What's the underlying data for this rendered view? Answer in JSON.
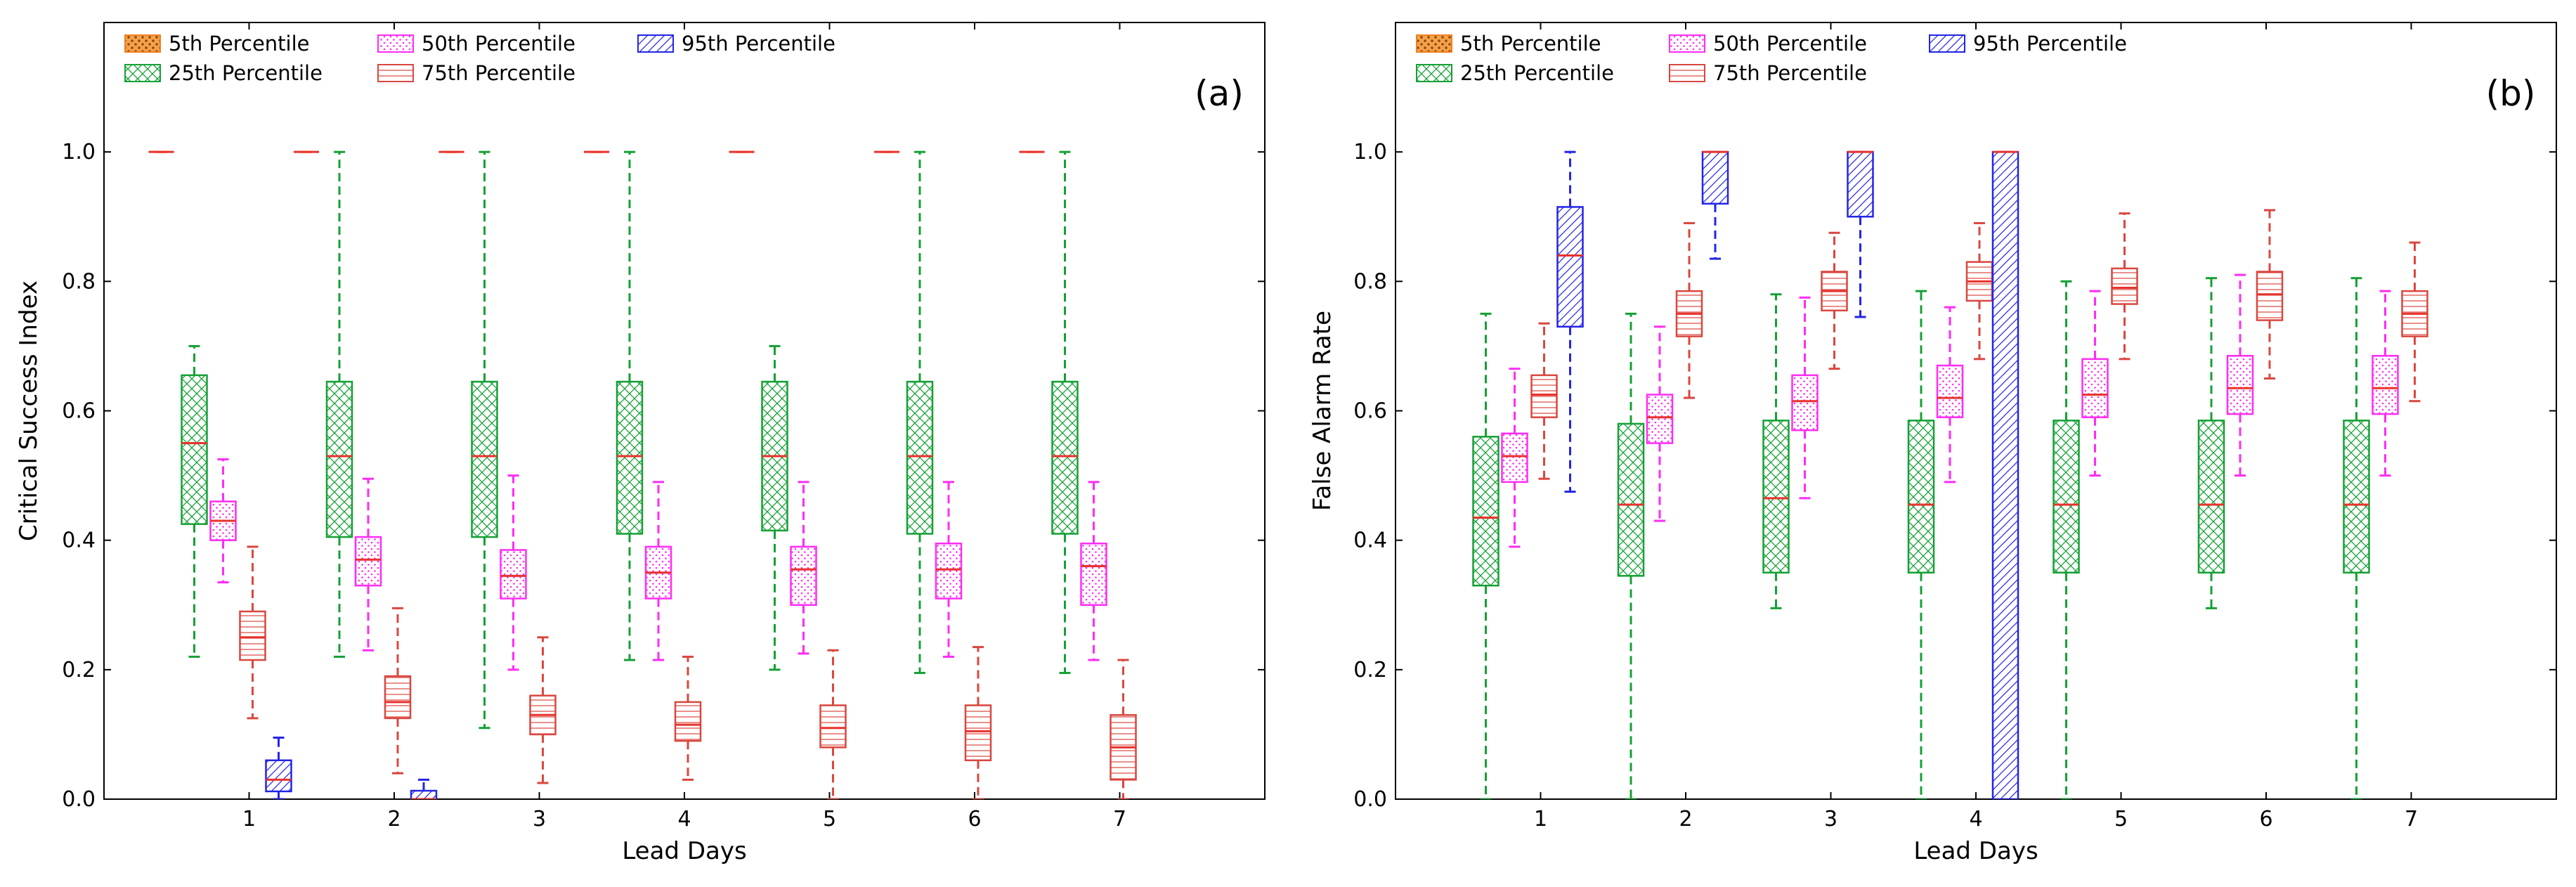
{
  "colors": {
    "p5": "#f07f1d",
    "p25": "#15a035",
    "p50": "#ff2cf4",
    "p75": "#d9473f",
    "p95": "#2424e6",
    "median": "#e8322c"
  },
  "legend": {
    "p5": "5th Percentile",
    "p25": "25th Percentile",
    "p50": "50th Percentile",
    "p75": "75th Percentile",
    "p95": "95th Percentile"
  },
  "chart_data": [
    {
      "type": "boxplot",
      "panel_label": "(a)",
      "xlabel": "Lead Days",
      "ylabel": "Critical Success Index",
      "ylim": [
        0,
        1.2
      ],
      "yticks": [
        "0.0",
        "0.2",
        "0.4",
        "0.6",
        "0.8",
        "1.0"
      ],
      "categories": [
        "1",
        "2",
        "3",
        "4",
        "5",
        "6",
        "7"
      ],
      "series": [
        {
          "key": "p5",
          "name": "5th Percentile",
          "boxes": [
            {
              "min": 1.0,
              "q1": 1.0,
              "med": 1.0,
              "q3": 1.0,
              "max": 1.0
            },
            {
              "min": 1.0,
              "q1": 1.0,
              "med": 1.0,
              "q3": 1.0,
              "max": 1.0
            },
            {
              "min": 1.0,
              "q1": 1.0,
              "med": 1.0,
              "q3": 1.0,
              "max": 1.0
            },
            {
              "min": 1.0,
              "q1": 1.0,
              "med": 1.0,
              "q3": 1.0,
              "max": 1.0
            },
            {
              "min": 1.0,
              "q1": 1.0,
              "med": 1.0,
              "q3": 1.0,
              "max": 1.0
            },
            {
              "min": 1.0,
              "q1": 1.0,
              "med": 1.0,
              "q3": 1.0,
              "max": 1.0
            },
            {
              "min": 1.0,
              "q1": 1.0,
              "med": 1.0,
              "q3": 1.0,
              "max": 1.0
            }
          ]
        },
        {
          "key": "p25",
          "name": "25th Percentile",
          "boxes": [
            {
              "min": 0.22,
              "q1": 0.425,
              "med": 0.55,
              "q3": 0.655,
              "max": 0.7
            },
            {
              "min": 0.22,
              "q1": 0.405,
              "med": 0.53,
              "q3": 0.645,
              "max": 1.0
            },
            {
              "min": 0.11,
              "q1": 0.405,
              "med": 0.53,
              "q3": 0.645,
              "max": 1.0
            },
            {
              "min": 0.215,
              "q1": 0.41,
              "med": 0.53,
              "q3": 0.645,
              "max": 1.0
            },
            {
              "min": 0.2,
              "q1": 0.415,
              "med": 0.53,
              "q3": 0.645,
              "max": 0.7
            },
            {
              "min": 0.195,
              "q1": 0.41,
              "med": 0.53,
              "q3": 0.645,
              "max": 1.0
            },
            {
              "min": 0.195,
              "q1": 0.41,
              "med": 0.53,
              "q3": 0.645,
              "max": 1.0
            }
          ]
        },
        {
          "key": "p50",
          "name": "50th Percentile",
          "boxes": [
            {
              "min": 0.335,
              "q1": 0.4,
              "med": 0.43,
              "q3": 0.46,
              "max": 0.525
            },
            {
              "min": 0.23,
              "q1": 0.33,
              "med": 0.37,
              "q3": 0.405,
              "max": 0.495
            },
            {
              "min": 0.2,
              "q1": 0.31,
              "med": 0.345,
              "q3": 0.385,
              "max": 0.5
            },
            {
              "min": 0.215,
              "q1": 0.31,
              "med": 0.35,
              "q3": 0.39,
              "max": 0.49
            },
            {
              "min": 0.225,
              "q1": 0.3,
              "med": 0.355,
              "q3": 0.39,
              "max": 0.49
            },
            {
              "min": 0.22,
              "q1": 0.31,
              "med": 0.355,
              "q3": 0.395,
              "max": 0.49
            },
            {
              "min": 0.215,
              "q1": 0.3,
              "med": 0.36,
              "q3": 0.395,
              "max": 0.49
            }
          ]
        },
        {
          "key": "p75",
          "name": "75th Percentile",
          "boxes": [
            {
              "min": 0.125,
              "q1": 0.215,
              "med": 0.25,
              "q3": 0.29,
              "max": 0.39
            },
            {
              "min": 0.04,
              "q1": 0.125,
              "med": 0.15,
              "q3": 0.19,
              "max": 0.295
            },
            {
              "min": 0.025,
              "q1": 0.1,
              "med": 0.13,
              "q3": 0.16,
              "max": 0.25
            },
            {
              "min": 0.03,
              "q1": 0.09,
              "med": 0.115,
              "q3": 0.15,
              "max": 0.22
            },
            {
              "min": 0.0,
              "q1": 0.08,
              "med": 0.11,
              "q3": 0.145,
              "max": 0.23
            },
            {
              "min": 0.0,
              "q1": 0.06,
              "med": 0.105,
              "q3": 0.145,
              "max": 0.235
            },
            {
              "min": 0.0,
              "q1": 0.03,
              "med": 0.08,
              "q3": 0.13,
              "max": 0.215
            }
          ]
        },
        {
          "key": "p95",
          "name": "95th Percentile",
          "boxes": [
            {
              "min": 0.0,
              "q1": 0.012,
              "med": 0.03,
              "q3": 0.06,
              "max": 0.095
            },
            {
              "min": 0.0,
              "q1": 0.0,
              "med": 0.0,
              "q3": 0.013,
              "max": 0.03
            },
            null,
            null,
            null,
            null,
            null
          ]
        }
      ]
    },
    {
      "type": "boxplot",
      "panel_label": "(b)",
      "xlabel": "Lead Days",
      "ylabel": "False Alarm Rate",
      "ylim": [
        0,
        1.2
      ],
      "yticks": [
        "0.0",
        "0.2",
        "0.4",
        "0.6",
        "0.8",
        "1.0"
      ],
      "categories": [
        "1",
        "2",
        "3",
        "4",
        "5",
        "6",
        "7"
      ],
      "series": [
        {
          "key": "p5",
          "name": "5th Percentile",
          "boxes": [
            null,
            null,
            null,
            null,
            null,
            null,
            null
          ]
        },
        {
          "key": "p25",
          "name": "25th Percentile",
          "boxes": [
            {
              "min": 0.0,
              "q1": 0.33,
              "med": 0.435,
              "q3": 0.56,
              "max": 0.75
            },
            {
              "min": 0.0,
              "q1": 0.345,
              "med": 0.455,
              "q3": 0.58,
              "max": 0.75
            },
            {
              "min": 0.295,
              "q1": 0.35,
              "med": 0.465,
              "q3": 0.585,
              "max": 0.78
            },
            {
              "min": 0.0,
              "q1": 0.35,
              "med": 0.455,
              "q3": 0.585,
              "max": 0.785
            },
            {
              "min": 0.0,
              "q1": 0.35,
              "med": 0.455,
              "q3": 0.585,
              "max": 0.8
            },
            {
              "min": 0.295,
              "q1": 0.35,
              "med": 0.455,
              "q3": 0.585,
              "max": 0.805
            },
            {
              "min": 0.0,
              "q1": 0.35,
              "med": 0.455,
              "q3": 0.585,
              "max": 0.805
            }
          ]
        },
        {
          "key": "p50",
          "name": "50th Percentile",
          "boxes": [
            {
              "min": 0.39,
              "q1": 0.49,
              "med": 0.53,
              "q3": 0.565,
              "max": 0.665
            },
            {
              "min": 0.43,
              "q1": 0.55,
              "med": 0.59,
              "q3": 0.625,
              "max": 0.73
            },
            {
              "min": 0.465,
              "q1": 0.57,
              "med": 0.615,
              "q3": 0.655,
              "max": 0.775
            },
            {
              "min": 0.49,
              "q1": 0.59,
              "med": 0.62,
              "q3": 0.67,
              "max": 0.76
            },
            {
              "min": 0.5,
              "q1": 0.59,
              "med": 0.625,
              "q3": 0.68,
              "max": 0.785
            },
            {
              "min": 0.5,
              "q1": 0.595,
              "med": 0.635,
              "q3": 0.685,
              "max": 0.81
            },
            {
              "min": 0.5,
              "q1": 0.595,
              "med": 0.635,
              "q3": 0.685,
              "max": 0.785
            }
          ]
        },
        {
          "key": "p75",
          "name": "75th Percentile",
          "boxes": [
            {
              "min": 0.495,
              "q1": 0.59,
              "med": 0.625,
              "q3": 0.655,
              "max": 0.735
            },
            {
              "min": 0.62,
              "q1": 0.715,
              "med": 0.75,
              "q3": 0.785,
              "max": 0.89
            },
            {
              "min": 0.665,
              "q1": 0.755,
              "med": 0.785,
              "q3": 0.815,
              "max": 0.875
            },
            {
              "min": 0.68,
              "q1": 0.77,
              "med": 0.8,
              "q3": 0.83,
              "max": 0.89
            },
            {
              "min": 0.68,
              "q1": 0.765,
              "med": 0.79,
              "q3": 0.82,
              "max": 0.905
            },
            {
              "min": 0.65,
              "q1": 0.74,
              "med": 0.78,
              "q3": 0.815,
              "max": 0.91
            },
            {
              "min": 0.615,
              "q1": 0.715,
              "med": 0.75,
              "q3": 0.785,
              "max": 0.86
            }
          ]
        },
        {
          "key": "p95",
          "name": "95th Percentile",
          "boxes": [
            {
              "min": 0.475,
              "q1": 0.73,
              "med": 0.84,
              "q3": 0.915,
              "max": 1.0
            },
            {
              "min": 0.835,
              "q1": 0.92,
              "med": 1.0,
              "q3": 1.0,
              "max": 1.0
            },
            {
              "min": 0.745,
              "q1": 0.9,
              "med": 1.0,
              "q3": 1.0,
              "max": 1.0
            },
            {
              "min": 0.0,
              "q1": 0.0,
              "med": 1.0,
              "q3": 1.0,
              "max": 1.0
            },
            null,
            null,
            null
          ]
        }
      ]
    }
  ]
}
